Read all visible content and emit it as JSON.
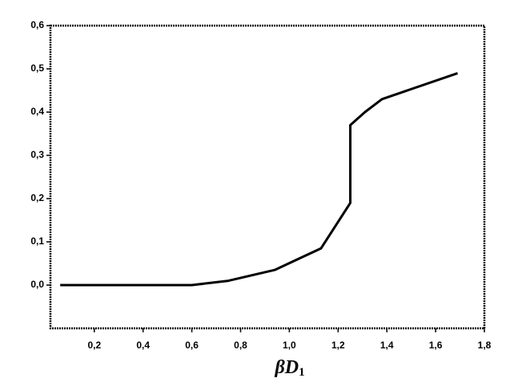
{
  "chart_data": {
    "type": "line",
    "xlabel": "βD",
    "xlabel_subscript": "1",
    "x": [
      0.06,
      0.6,
      0.75,
      0.94,
      1.13,
      1.25,
      1.25,
      1.31,
      1.38,
      1.69
    ],
    "series": [
      {
        "color": "#000000",
        "values": [
          0,
          0,
          0.01,
          0.035,
          0.085,
          0.19,
          0.37,
          0.4,
          0.43,
          0.49
        ]
      }
    ],
    "xlim": [
      0.02,
      1.8
    ],
    "ylim": [
      -0.1,
      0.6
    ],
    "xticks": [
      {
        "value": 0.2,
        "label": "0,2"
      },
      {
        "value": 0.4,
        "label": "0,4"
      },
      {
        "value": 0.6,
        "label": "0,6"
      },
      {
        "value": 0.8,
        "label": "0,8"
      },
      {
        "value": 1.0,
        "label": "1,0"
      },
      {
        "value": 1.2,
        "label": "1,2"
      },
      {
        "value": 1.4,
        "label": "1,4"
      },
      {
        "value": 1.6,
        "label": "1,6"
      },
      {
        "value": 1.8,
        "label": "1,8"
      }
    ],
    "yticks": [
      {
        "value": 0.0,
        "label": "0,0"
      },
      {
        "value": 0.1,
        "label": "0,1"
      },
      {
        "value": 0.2,
        "label": "0,2"
      },
      {
        "value": 0.3,
        "label": "0,3"
      },
      {
        "value": 0.4,
        "label": "0,4"
      },
      {
        "value": 0.5,
        "label": "0,5"
      },
      {
        "value": 0.6,
        "label": "0,6"
      }
    ],
    "grid": false
  }
}
